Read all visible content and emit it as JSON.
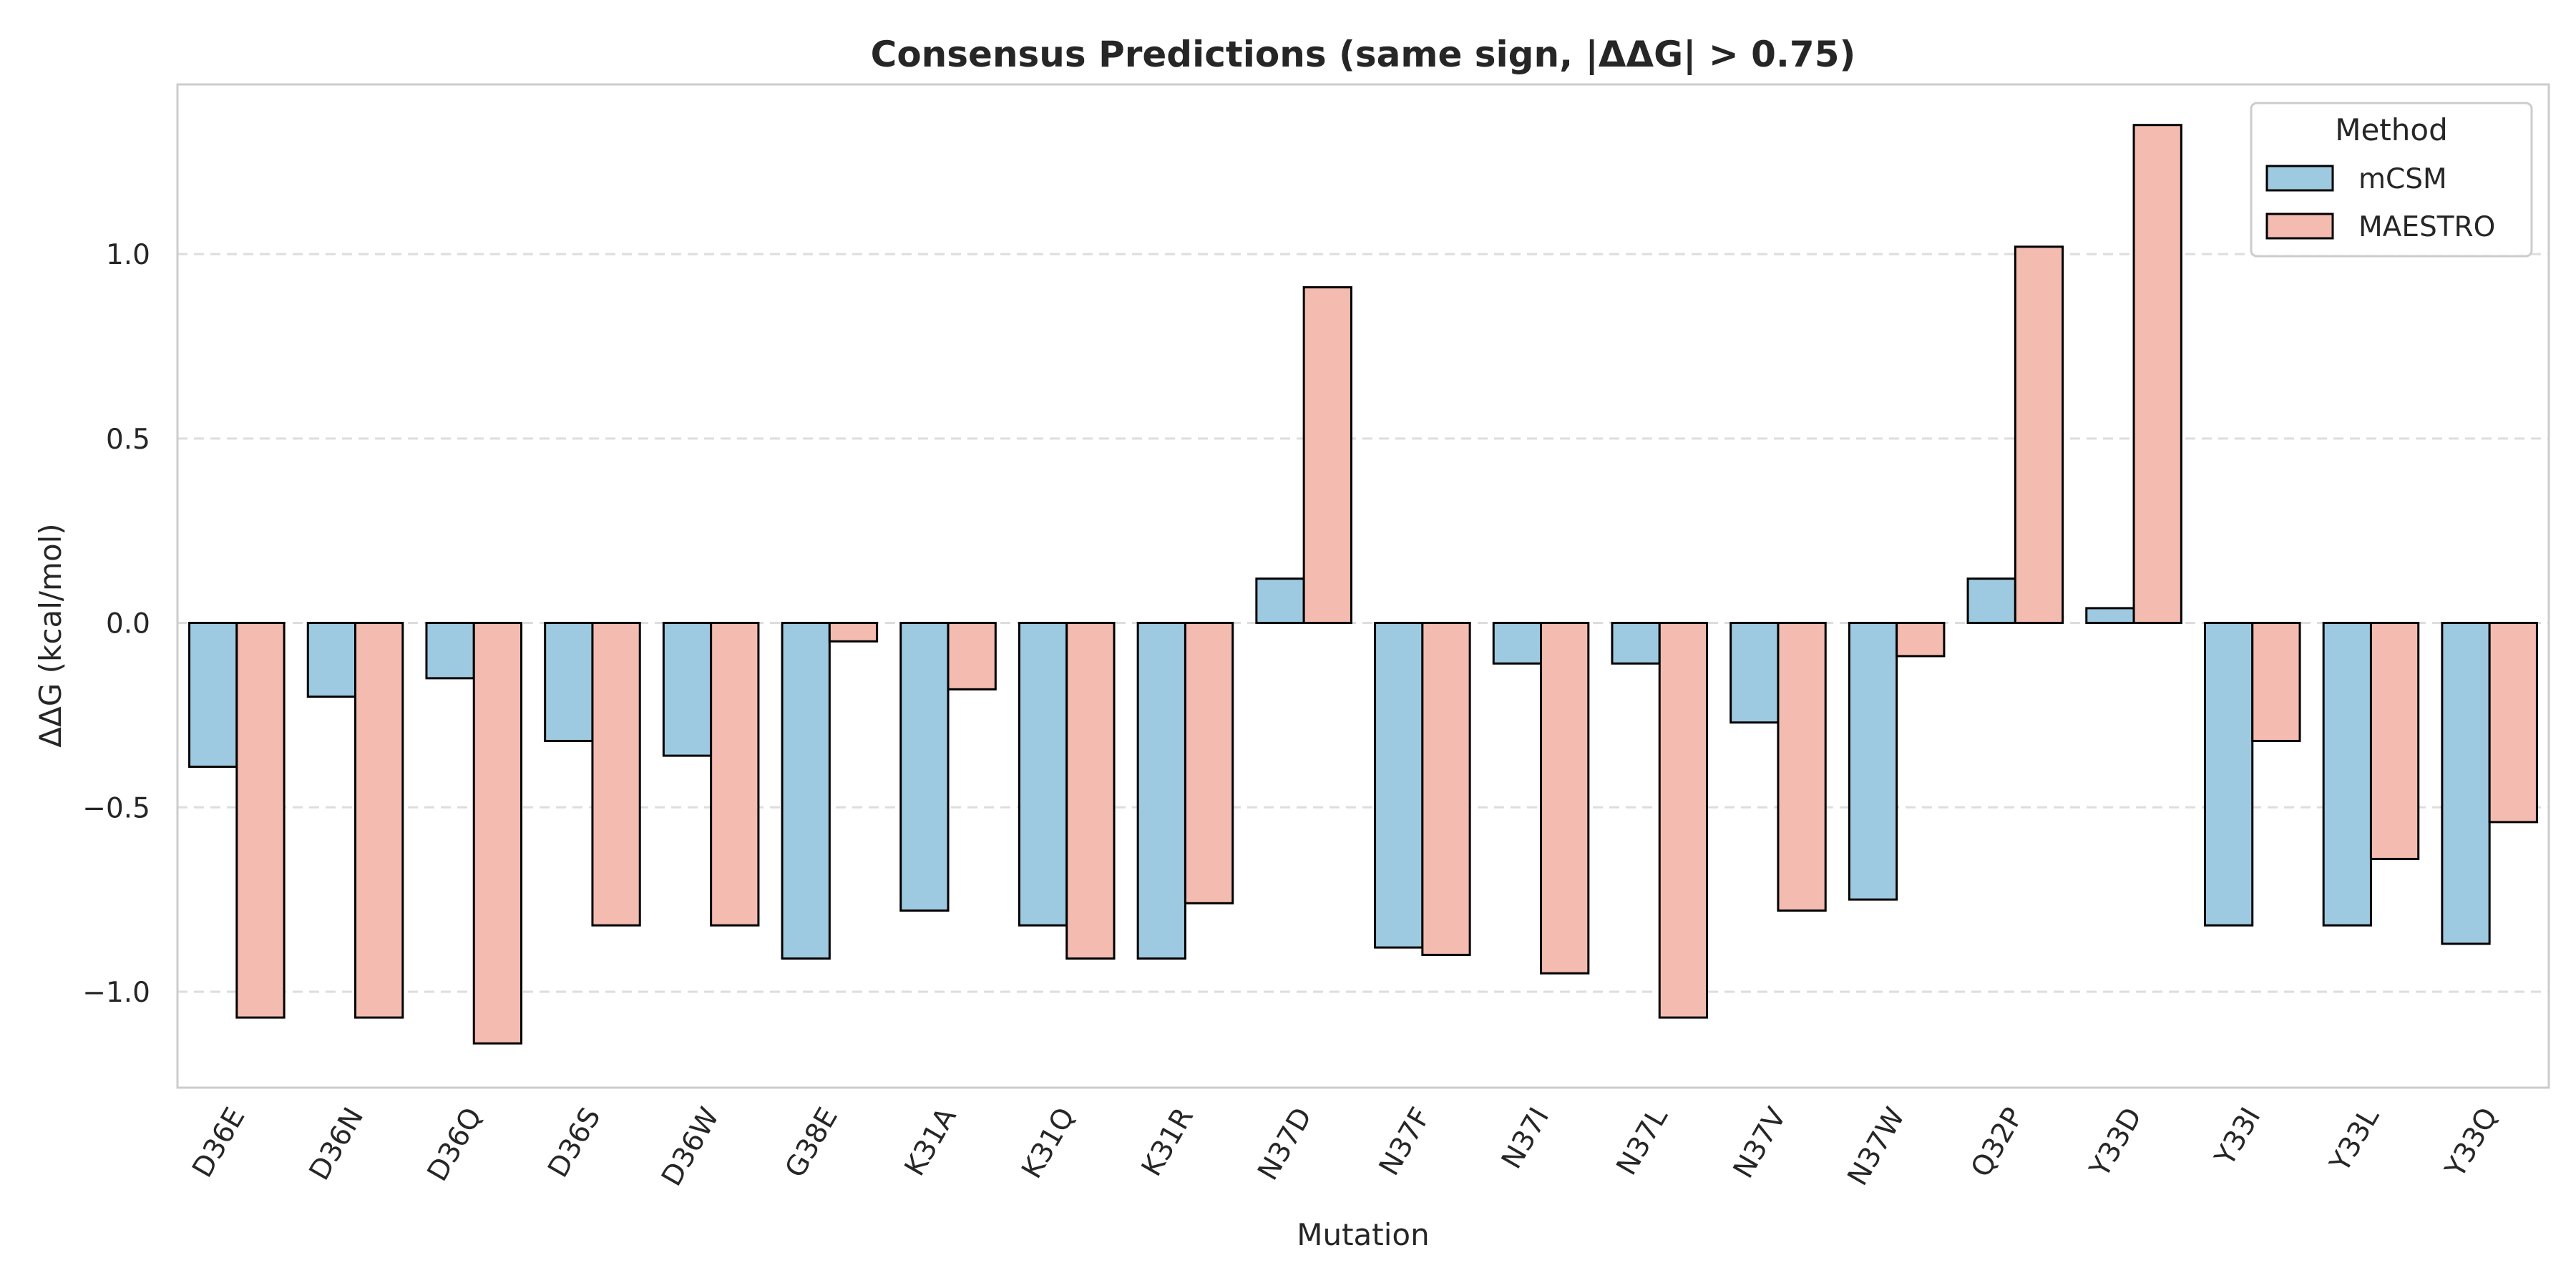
{
  "chart_data": {
    "type": "bar",
    "title": "Consensus Predictions (same sign, |ΔΔG| > 0.75)",
    "xlabel": "Mutation",
    "ylabel": "ΔΔG (kcal/mol)",
    "ylim": [
      -1.26,
      1.46
    ],
    "yticks": [
      -1.0,
      -0.5,
      0.0,
      0.5,
      1.0
    ],
    "ytick_labels": [
      "−1.0",
      "−0.5",
      "0.0",
      "0.5",
      "1.0"
    ],
    "grid": true,
    "legend": {
      "title": "Method",
      "placement": "top-right"
    },
    "categories": [
      "D36E",
      "D36N",
      "D36Q",
      "D36S",
      "D36W",
      "G38E",
      "K31A",
      "K31Q",
      "K31R",
      "N37D",
      "N37F",
      "N37I",
      "N37L",
      "N37V",
      "N37W",
      "Q32P",
      "Y33D",
      "Y33I",
      "Y33L",
      "Y33Q"
    ],
    "series": [
      {
        "name": "mCSM",
        "color": "#9ecae1",
        "values": [
          -0.39,
          -0.2,
          -0.15,
          -0.32,
          -0.36,
          -0.91,
          -0.78,
          -0.82,
          -0.91,
          0.12,
          -0.88,
          -0.11,
          -0.11,
          -0.27,
          -0.75,
          0.12,
          0.04,
          -0.82,
          -0.82,
          -0.87
        ]
      },
      {
        "name": "MAESTRO",
        "color": "#f4bcb0",
        "values": [
          -1.07,
          -1.07,
          -1.14,
          -0.82,
          -0.82,
          -0.05,
          -0.18,
          -0.91,
          -0.76,
          0.91,
          -0.9,
          -0.95,
          -1.07,
          -0.78,
          -0.09,
          1.02,
          1.35,
          -0.32,
          -0.64,
          -0.54
        ]
      }
    ]
  }
}
